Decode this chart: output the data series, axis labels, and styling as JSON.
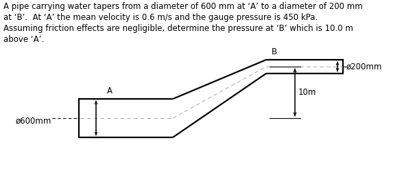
{
  "text_line1": "A pipe carrying water tapers from a diameter of 600 mm at ‘A’ to a diameter of 200 mm",
  "text_line2": "at ‘B’.  At ‘A’ the mean velocity is 0.6 m/s and the gauge pressure is 450 kPa.",
  "text_line3": "Assuming friction effects are negligible, determine the pressure at ‘B’ which is 10.0 m",
  "text_line4": "above ‘A’.",
  "label_A": "A",
  "label_B": "B",
  "label_dia_A": "ø600mm",
  "label_dia_B": "ø200mm",
  "label_height": "10m",
  "pipe_color": "#000000",
  "cl_color": "#aaaaaa",
  "bg_color": "#ffffff",
  "font_size_text": 8.5,
  "font_size_label": 8.5
}
